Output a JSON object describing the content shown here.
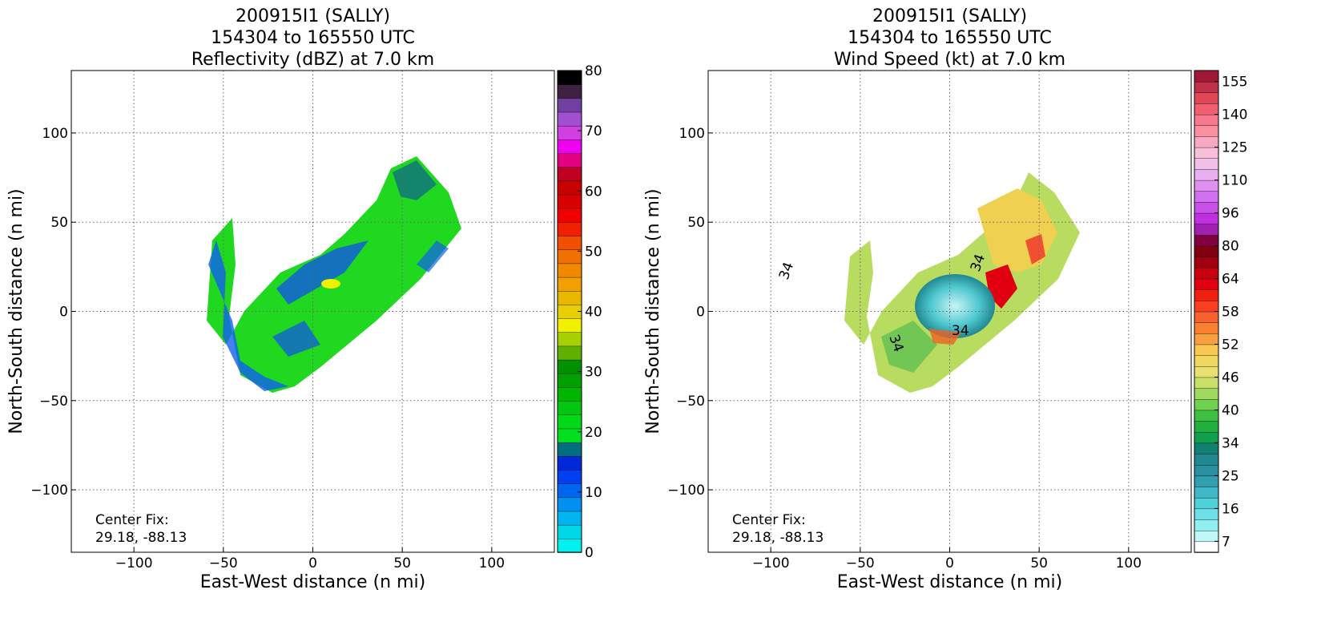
{
  "chart_data": [
    {
      "type": "field",
      "title": [
        "200915I1 (SALLY)",
        "154304 to 165550 UTC",
        "Reflectivity (dBZ) at 7.0 km"
      ],
      "xlabel": "East-West distance (n mi)",
      "ylabel": "North-South distance (n mi)",
      "xlim": [
        -135,
        135
      ],
      "ylim": [
        -135,
        135
      ],
      "xticks": [
        {
          "value": -100,
          "label": "−100"
        },
        {
          "value": -50,
          "label": "−50"
        },
        0,
        50,
        100
      ],
      "yticks": [
        {
          "value": -100,
          "label": "−100"
        },
        {
          "value": -50,
          "label": "−50"
        },
        0,
        50,
        100
      ],
      "grid": true,
      "annotation": [
        "Center Fix:",
        "29.18, -88.13"
      ],
      "colorbar": {
        "lim": [
          0,
          80
        ],
        "ticks": [
          0,
          10,
          20,
          30,
          40,
          50,
          60,
          70,
          80
        ],
        "colors": [
          "#00f0f0",
          "#00d8e8",
          "#00b4f0",
          "#0090f0",
          "#0066f0",
          "#0040f0",
          "#0028d8",
          "#007080",
          "#00e020",
          "#00d818",
          "#00c810",
          "#00b400",
          "#00a000",
          "#009000",
          "#60b000",
          "#a8d000",
          "#f0f000",
          "#e8d000",
          "#e8b800",
          "#f0a000",
          "#f08800",
          "#f07000",
          "#f05000",
          "#f02000",
          "#f00000",
          "#d80000",
          "#c80000",
          "#c00020",
          "#e00080",
          "#f000f0",
          "#d040e0",
          "#a050d0",
          "#7040a0",
          "#402040",
          "#000000"
        ]
      }
    },
    {
      "type": "field",
      "title": [
        "200915I1 (SALLY)",
        "154304 to 165550 UTC",
        "Wind Speed (kt) at 7.0 km"
      ],
      "xlabel": "East-West distance (n mi)",
      "ylabel": "North-South distance (n mi)",
      "xlim": [
        -135,
        135
      ],
      "ylim": [
        -135,
        135
      ],
      "xticks": [
        {
          "value": -100,
          "label": "−100"
        },
        {
          "value": -50,
          "label": "−50"
        },
        0,
        50,
        100
      ],
      "yticks": [
        {
          "value": -100,
          "label": "−100"
        },
        {
          "value": -50,
          "label": "−50"
        },
        0,
        50,
        100
      ],
      "grid": true,
      "annotation": [
        "Center Fix:",
        "29.18, -88.13"
      ],
      "contour_labels": [
        "34",
        "34",
        "34",
        "34"
      ],
      "colorbar": {
        "ticks": [
          7,
          16,
          25,
          34,
          40,
          46,
          52,
          58,
          64,
          80,
          96,
          110,
          125,
          140,
          155
        ],
        "colors": [
          "#ffffff",
          "#c0f8f8",
          "#90f0f0",
          "#70e0e8",
          "#50d0d8",
          "#40b8c8",
          "#30a0b0",
          "#2890a0",
          "#208890",
          "#108070",
          "#10a050",
          "#20b040",
          "#40c040",
          "#70d050",
          "#a0d860",
          "#c8e068",
          "#e8e070",
          "#f0d860",
          "#f8c850",
          "#f8a040",
          "#f88030",
          "#f86030",
          "#f84020",
          "#f02010",
          "#e00010",
          "#c80010",
          "#a00010",
          "#800010",
          "#800040",
          "#a020b0",
          "#c030e0",
          "#c850e8",
          "#d070f0",
          "#e090f0",
          "#e8b0f0",
          "#f0c0e8",
          "#f8c0d8",
          "#f8a8c0",
          "#f890a0",
          "#f87890",
          "#f06070",
          "#e04858",
          "#c03048",
          "#a01838"
        ]
      }
    }
  ]
}
